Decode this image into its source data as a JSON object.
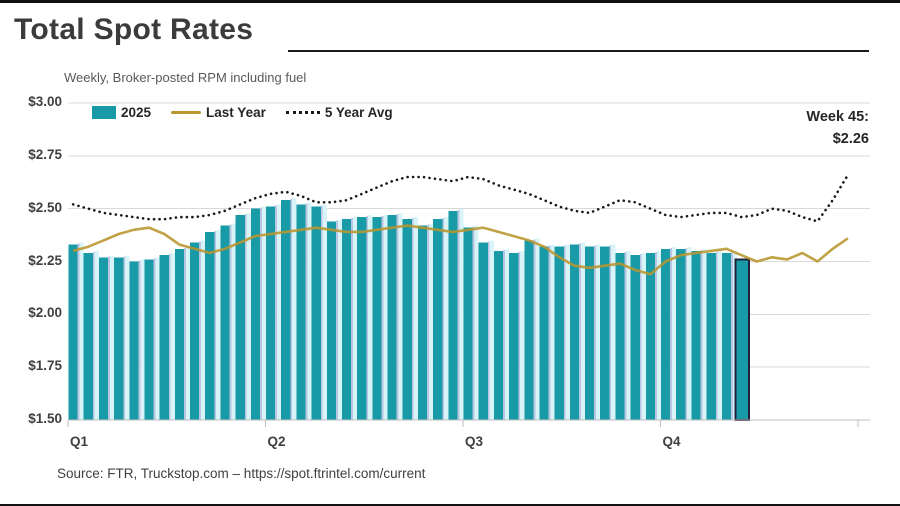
{
  "header": {
    "title": "Total Spot Rates",
    "subtitle": "Weekly, Broker-posted RPM including fuel"
  },
  "footer": {
    "source": "Source: FTR, Truckstop.com – https://spot.ftrintel.com/current"
  },
  "chart_data": {
    "type": "bar",
    "title": "Total Spot Rates",
    "subtitle": "Weekly, Broker-posted RPM including fuel",
    "x_unit": "week",
    "total_weeks_shown": 52,
    "y_axis": {
      "min": 1.5,
      "max": 3.0,
      "step": 0.25,
      "tick_values": [
        3.0,
        2.75,
        2.5,
        2.25,
        2.0,
        1.75,
        1.5
      ],
      "tick_labels": [
        "$3.00",
        "$2.75",
        "$2.50",
        "$2.25",
        "$2.00",
        "$1.75",
        "$1.50"
      ]
    },
    "x_axis": {
      "tick_labels": [
        "Q1",
        "Q2",
        "Q3",
        "Q4"
      ],
      "tick_weeks": [
        0,
        13,
        26,
        39,
        52
      ],
      "grid": false
    },
    "grid": "horizontal",
    "legend_position": "top-left",
    "annotation": {
      "label": "Week 45:",
      "value": "$2.26",
      "week": 45
    },
    "colors": {
      "bar": "#189AA7",
      "bar_gap_light": "#D9F4F8",
      "bar_gap_shadow": "#A9B6DC",
      "bar_highlight_border": "#21213C",
      "last_year_line": "#B9952D",
      "five_year_dotted": "#1a1a1a",
      "gridline": "#D9D9D9",
      "axis": "#BFBFBF"
    },
    "series": [
      {
        "name": "2025",
        "type": "bar",
        "color": "#189AA7",
        "values": [
          2.33,
          2.29,
          2.27,
          2.27,
          2.25,
          2.26,
          2.28,
          2.31,
          2.34,
          2.39,
          2.42,
          2.47,
          2.5,
          2.51,
          2.54,
          2.52,
          2.51,
          2.44,
          2.45,
          2.46,
          2.46,
          2.47,
          2.45,
          2.42,
          2.45,
          2.49,
          2.41,
          2.34,
          2.3,
          2.29,
          2.35,
          2.32,
          2.32,
          2.33,
          2.32,
          2.32,
          2.29,
          2.28,
          2.29,
          2.31,
          2.31,
          2.3,
          2.29,
          2.29,
          2.26
        ]
      },
      {
        "name": "Last Year",
        "type": "line",
        "color": "#B9952D",
        "values": [
          2.3,
          2.32,
          2.35,
          2.38,
          2.4,
          2.41,
          2.38,
          2.33,
          2.31,
          2.29,
          2.31,
          2.34,
          2.37,
          2.38,
          2.39,
          2.4,
          2.41,
          2.4,
          2.39,
          2.39,
          2.4,
          2.41,
          2.42,
          2.41,
          2.4,
          2.39,
          2.4,
          2.41,
          2.39,
          2.37,
          2.35,
          2.32,
          2.27,
          2.23,
          2.22,
          2.23,
          2.24,
          2.21,
          2.19,
          2.25,
          2.28,
          2.29,
          2.3,
          2.31,
          2.28,
          2.25,
          2.27,
          2.26,
          2.29,
          2.25,
          2.31,
          2.36
        ]
      },
      {
        "name": "5 Year Avg",
        "type": "dotted-line",
        "color": "#1a1a1a",
        "values": [
          2.52,
          2.5,
          2.48,
          2.47,
          2.46,
          2.45,
          2.45,
          2.46,
          2.46,
          2.47,
          2.49,
          2.52,
          2.55,
          2.57,
          2.58,
          2.56,
          2.53,
          2.53,
          2.54,
          2.57,
          2.6,
          2.63,
          2.65,
          2.65,
          2.64,
          2.63,
          2.65,
          2.64,
          2.61,
          2.59,
          2.57,
          2.54,
          2.51,
          2.49,
          2.48,
          2.51,
          2.54,
          2.53,
          2.5,
          2.47,
          2.46,
          2.47,
          2.48,
          2.48,
          2.46,
          2.47,
          2.5,
          2.49,
          2.46,
          2.44,
          2.54,
          2.66
        ]
      }
    ]
  }
}
